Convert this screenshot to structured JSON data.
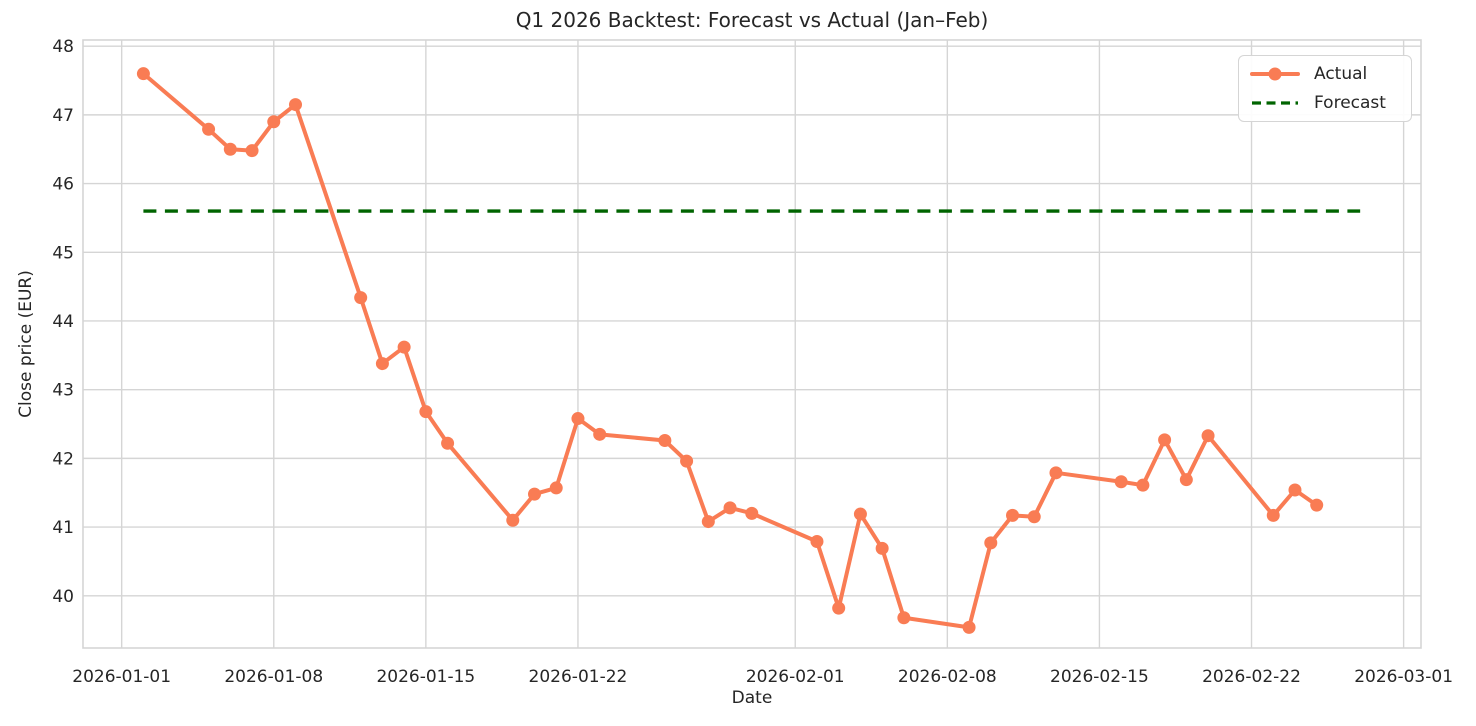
{
  "chart_data": {
    "type": "line",
    "title": "Q1 2026 Backtest: Forecast vs Actual (Jan–Feb)",
    "xlabel": "Date",
    "ylabel": "Close price (EUR)",
    "grid": true,
    "legend_position": "upper right",
    "x_epoch": "2026-01-01",
    "xlim_days": [
      -1.78,
      59.8
    ],
    "ylim": [
      39.24,
      48.09
    ],
    "x_tick_labels": [
      "2026-01-01",
      "2026-01-08",
      "2026-01-15",
      "2026-01-22",
      "2026-02-01",
      "2026-02-08",
      "2026-02-15",
      "2026-02-22",
      "2026-03-01"
    ],
    "y_ticks": [
      40,
      41,
      42,
      43,
      44,
      45,
      46,
      47,
      48
    ],
    "colors": {
      "actual": "#F97C54",
      "forecast": "#006400",
      "grid": "#d5d5d5",
      "text": "#262626",
      "background": "#ffffff"
    },
    "series": [
      {
        "name": "Actual",
        "style": "solid_line_with_markers",
        "color": "#F97C54",
        "dates": [
          "2026-01-02",
          "2026-01-05",
          "2026-01-06",
          "2026-01-07",
          "2026-01-08",
          "2026-01-09",
          "2026-01-12",
          "2026-01-13",
          "2026-01-14",
          "2026-01-15",
          "2026-01-16",
          "2026-01-19",
          "2026-01-20",
          "2026-01-21",
          "2026-01-22",
          "2026-01-23",
          "2026-01-26",
          "2026-01-27",
          "2026-01-28",
          "2026-01-29",
          "2026-01-30",
          "2026-02-02",
          "2026-02-03",
          "2026-02-04",
          "2026-02-05",
          "2026-02-06",
          "2026-02-09",
          "2026-02-10",
          "2026-02-11",
          "2026-02-12",
          "2026-02-13",
          "2026-02-16",
          "2026-02-17",
          "2026-02-18",
          "2026-02-19",
          "2026-02-20",
          "2026-02-23",
          "2026-02-24",
          "2026-02-25"
        ],
        "values": [
          47.6,
          46.79,
          46.5,
          46.48,
          46.9,
          47.15,
          44.34,
          43.38,
          43.62,
          42.68,
          42.22,
          41.1,
          41.48,
          41.57,
          42.58,
          42.35,
          42.26,
          41.96,
          41.08,
          41.28,
          41.2,
          40.79,
          39.82,
          41.19,
          40.69,
          39.68,
          39.54,
          40.77,
          41.17,
          41.15,
          41.79,
          41.66,
          41.61,
          42.27,
          41.69,
          42.33,
          41.17,
          41.54,
          41.32
        ]
      },
      {
        "name": "Forecast",
        "style": "dashed_flat_line",
        "color": "#006400",
        "value": 45.6,
        "start_date": "2026-01-02",
        "end_date": "2026-02-27"
      }
    ]
  }
}
